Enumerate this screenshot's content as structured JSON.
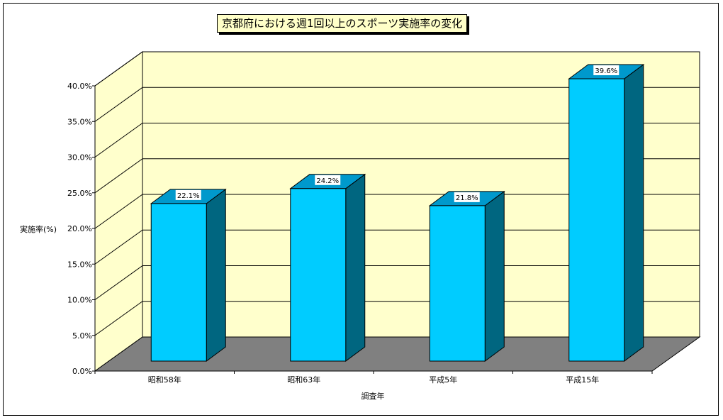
{
  "chart_data": {
    "type": "bar",
    "title": "京都府における週1回以上のスポーツ実施率の変化",
    "xlabel": "調査年",
    "ylabel": "実施率(%)",
    "categories": [
      "昭和58年",
      "昭和63年",
      "平成5年",
      "平成15年"
    ],
    "values": [
      22.1,
      24.2,
      21.8,
      39.6
    ],
    "data_labels": [
      "22.1%",
      "24.2%",
      "21.8%",
      "39.6%"
    ],
    "y_ticks": [
      0,
      5,
      10,
      15,
      20,
      25,
      30,
      35,
      40
    ],
    "y_tick_labels": [
      "0.0%",
      "5.0%",
      "10.0%",
      "15.0%",
      "20.0%",
      "25.0%",
      "30.0%",
      "35.0%",
      "40.0%"
    ],
    "ylim": [
      0,
      40
    ],
    "grid": true,
    "legend": "none",
    "style": "3d-column",
    "colors": {
      "bar_front": "#00ccff",
      "bar_top": "#0099cc",
      "bar_side": "#006680",
      "wall": "#ffffcc",
      "floor": "#808080"
    }
  }
}
